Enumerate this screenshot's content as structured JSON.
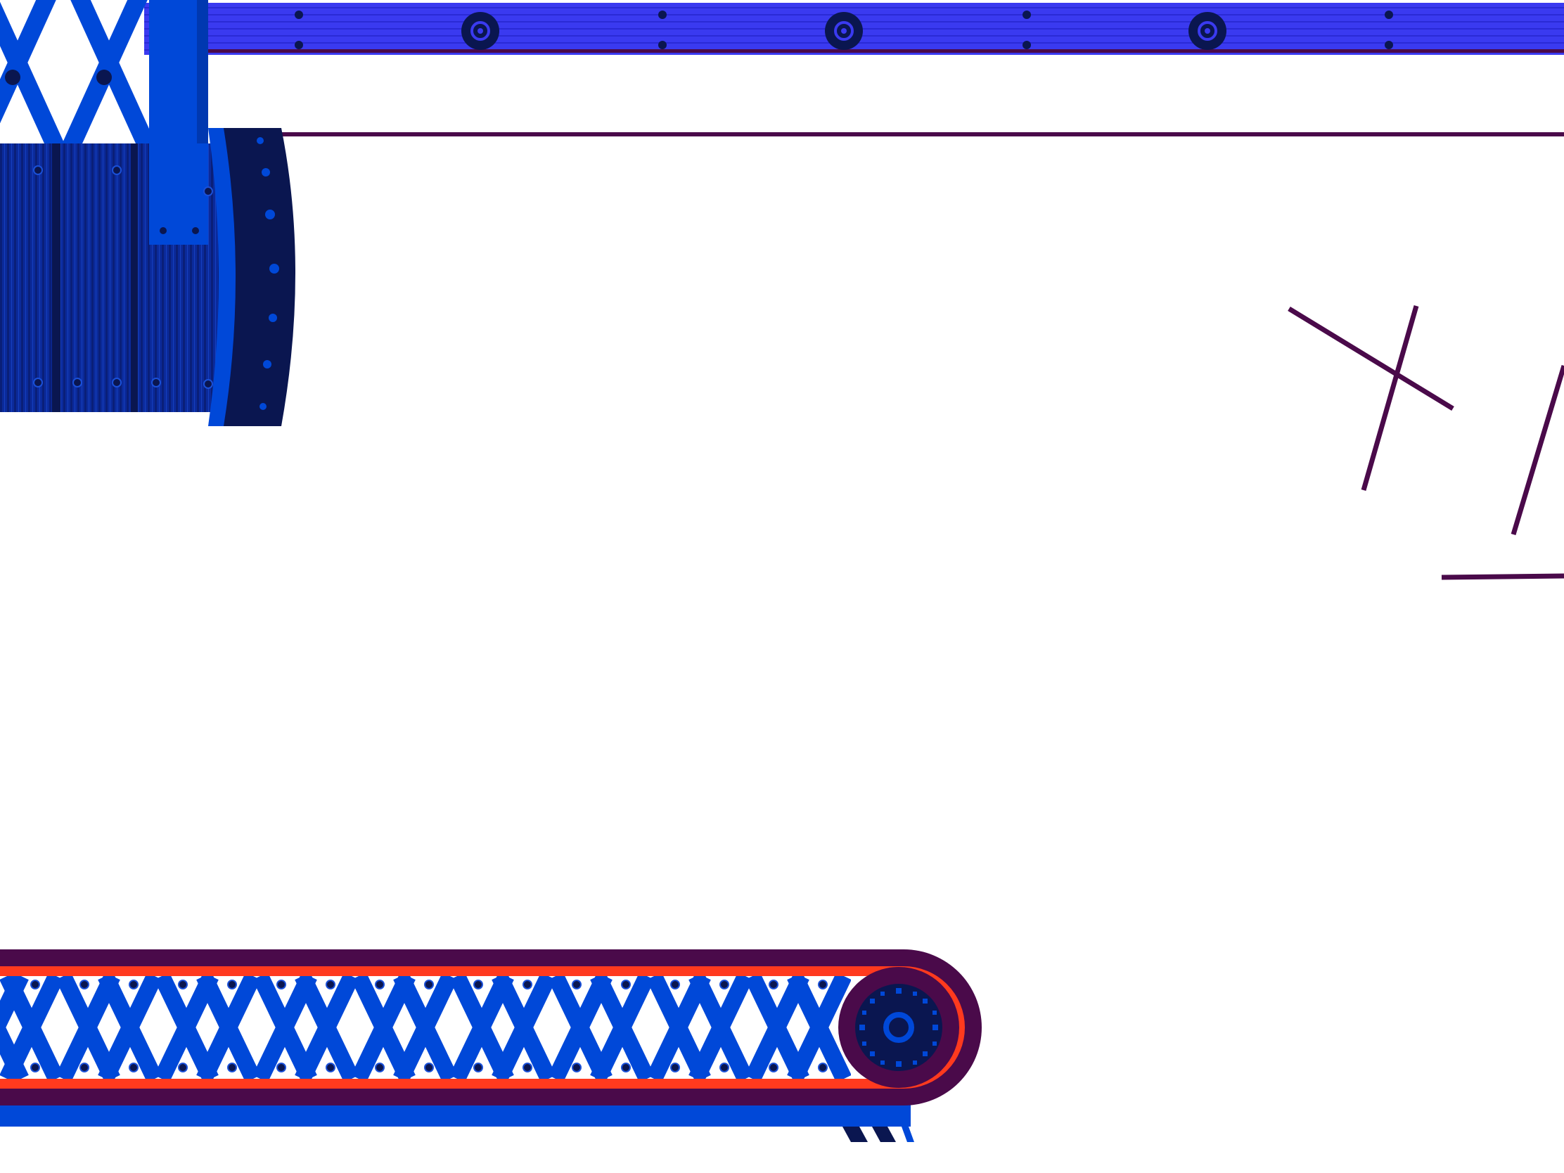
{
  "scene": {
    "colors": {
      "background": "#ffffff",
      "blue": "#0048d8",
      "blue_dark": "#002a8a",
      "navy": "#0a1650",
      "rail_blue": "#3a3af0",
      "rail_stripe": "#2424c8",
      "plum": "#4a0a4a",
      "orange_red": "#ff3a1e"
    },
    "icons": [
      "telescoping-arm-icon",
      "ceiling-rail-icon",
      "conveyor-belt-icon",
      "gear-wheel-icon",
      "decorative-line-icon"
    ]
  }
}
